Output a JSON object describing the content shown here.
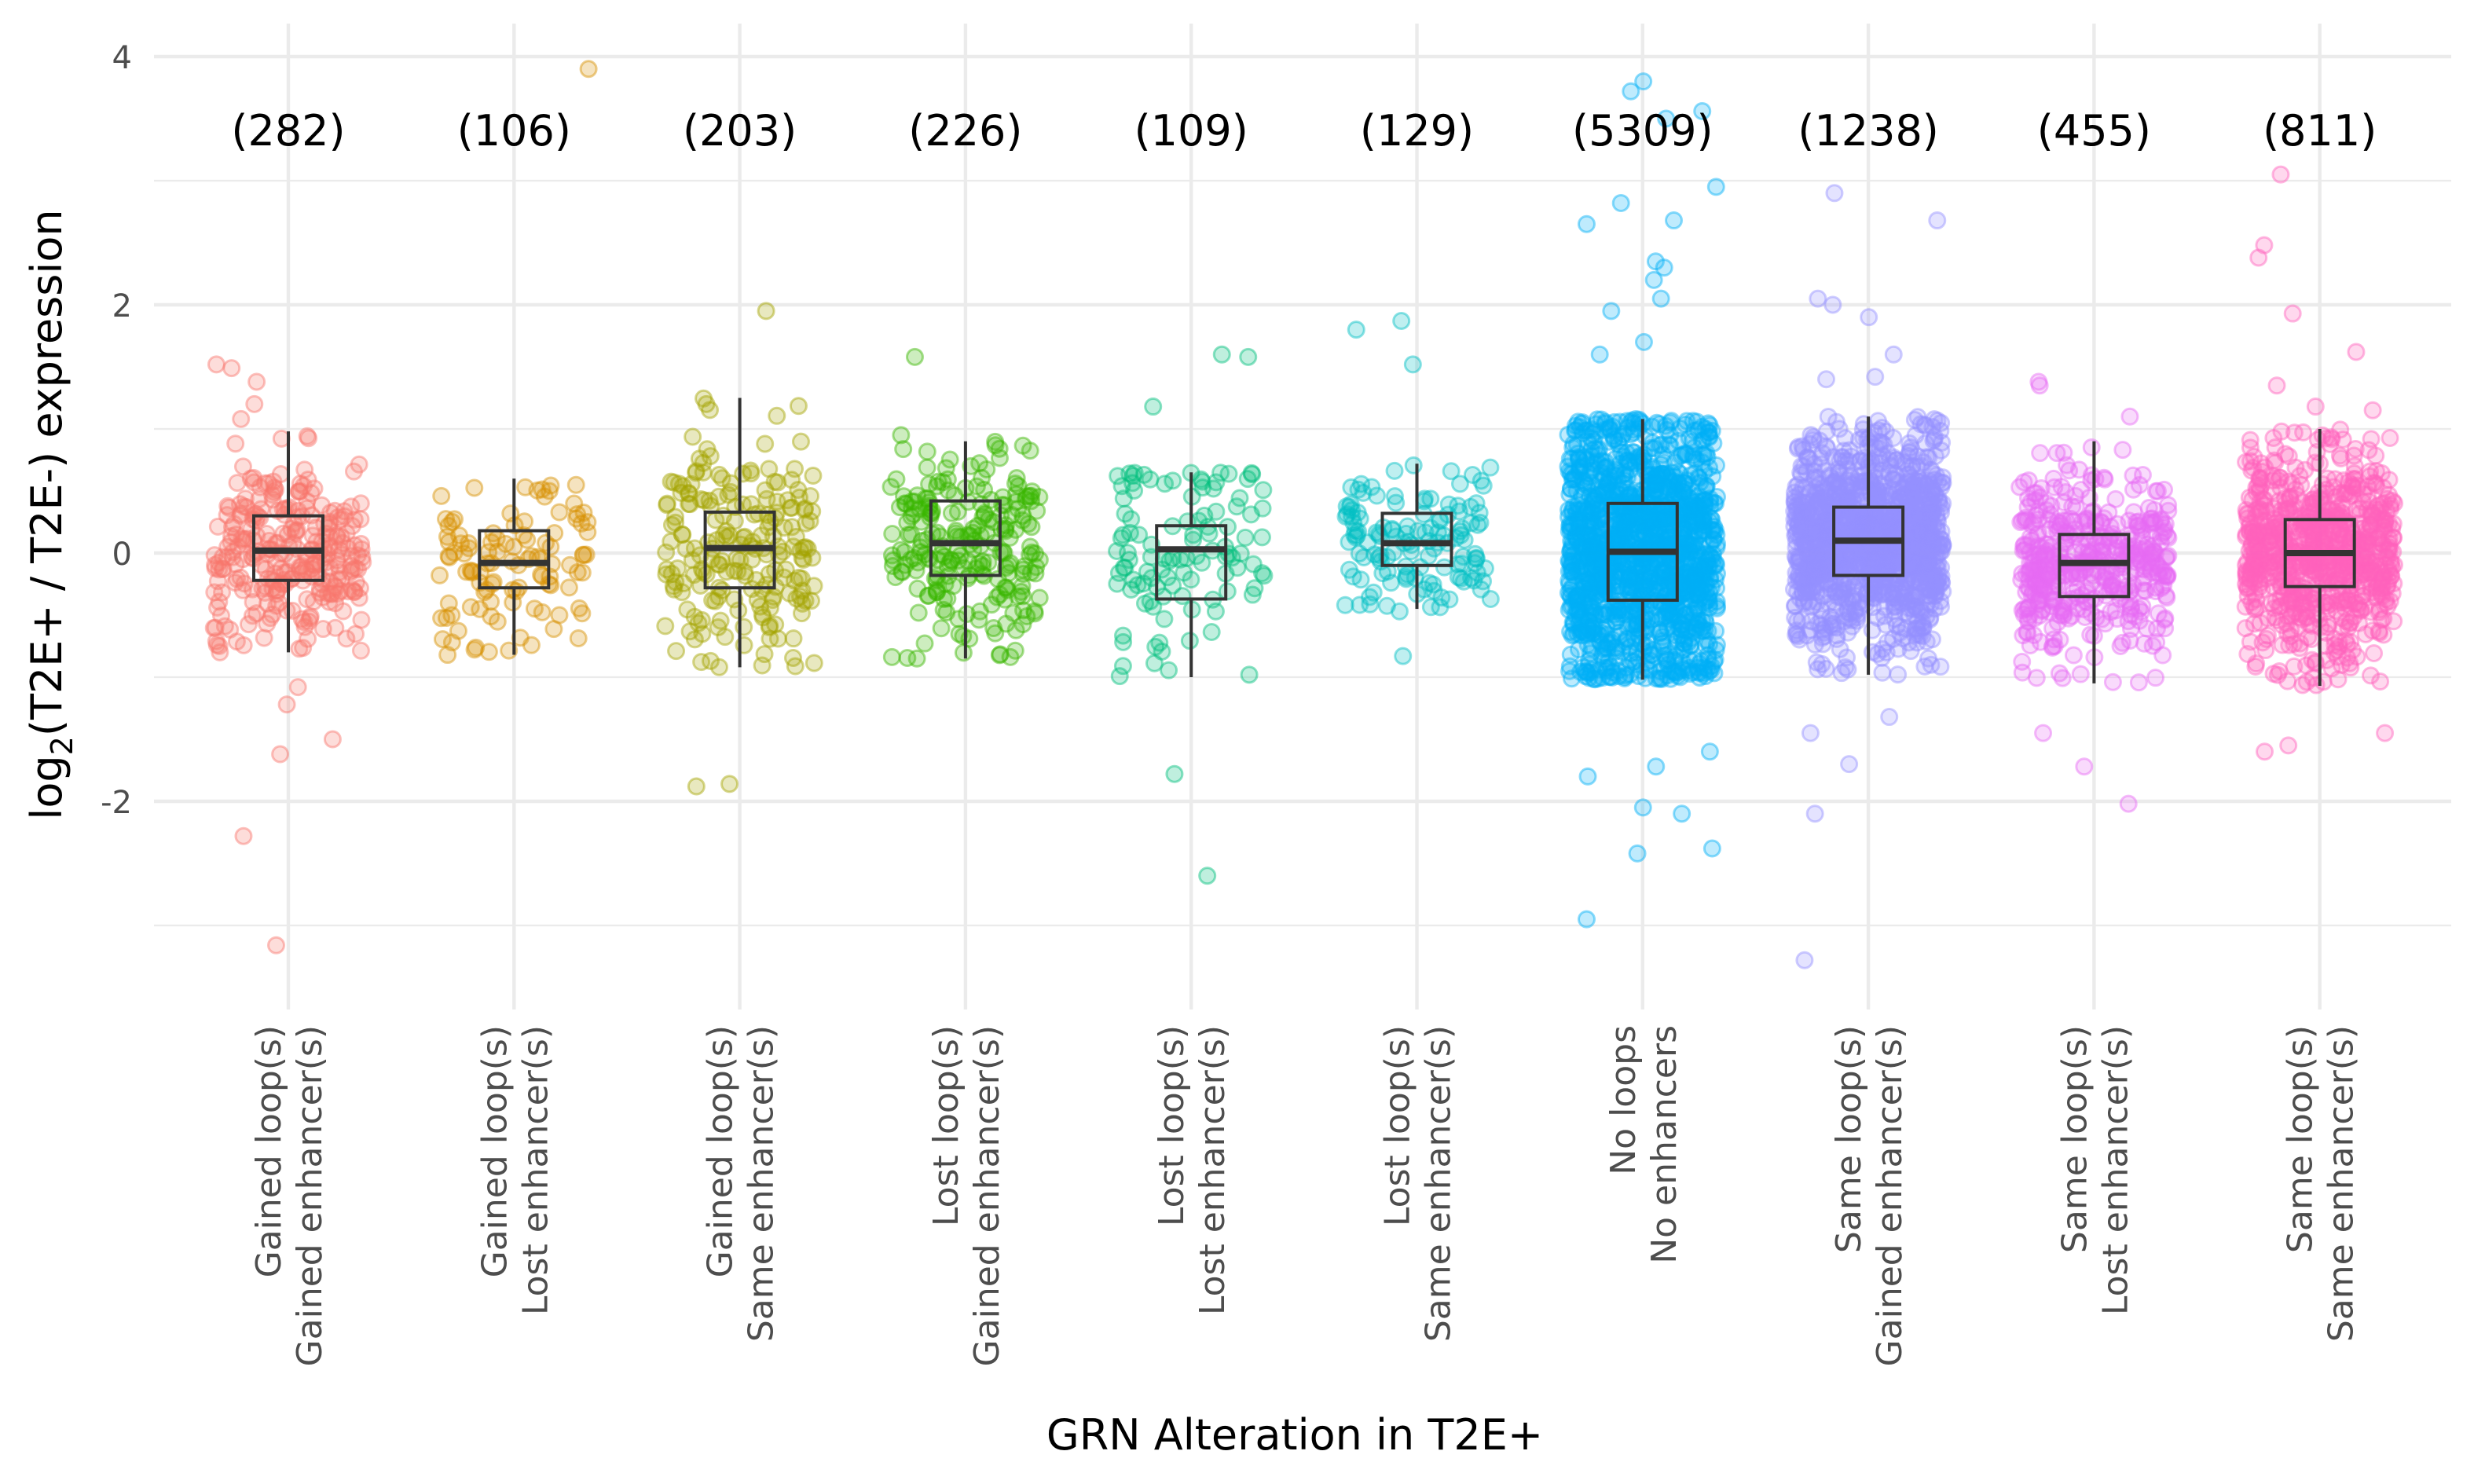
{
  "chart_data": {
    "type": "box",
    "xlabel": "GRN Alteration in T2E+",
    "ylabel_parts": [
      "log",
      "2",
      "(T2E+ / T2E-) expression"
    ],
    "ylim": [
      -3.7,
      4.25
    ],
    "yticks": [
      -2,
      0,
      2,
      4
    ],
    "ytick_labels": [
      "-2",
      "0",
      "2",
      "4"
    ],
    "grid": true,
    "legend": "none",
    "groups": [
      {
        "label_lines": [
          "Gained loop(s)",
          "Gained enhancer(s)"
        ],
        "count_label": "(282)",
        "n": 282,
        "color": "#F8766D",
        "box": {
          "q1": -0.22,
          "median": 0.02,
          "q3": 0.3,
          "whisker_low": -0.8,
          "whisker_high": 0.98
        },
        "outliers": [
          1.52,
          1.49,
          1.2,
          1.08,
          -1.22,
          -1.5,
          -1.62,
          -2.28,
          -3.16,
          -0.8,
          -1.08,
          1.38
        ]
      },
      {
        "label_lines": [
          "Gained loop(s)",
          "Lost enhancer(s)"
        ],
        "count_label": "(106)",
        "n": 106,
        "color": "#D89000",
        "box": {
          "q1": -0.28,
          "median": -0.08,
          "q3": 0.18,
          "whisker_low": -0.82,
          "whisker_high": 0.6
        },
        "outliers": [
          3.9,
          -0.72,
          -0.82
        ]
      },
      {
        "label_lines": [
          "Gained loop(s)",
          "Same enhancer(s)"
        ],
        "count_label": "(203)",
        "n": 203,
        "color": "#A3A500",
        "box": {
          "q1": -0.28,
          "median": 0.04,
          "q3": 0.33,
          "whisker_low": -0.92,
          "whisker_high": 1.25
        },
        "outliers": [
          1.95,
          -1.88,
          -1.86,
          1.2
        ]
      },
      {
        "label_lines": [
          "Lost loop(s)",
          "Gained enhancer(s)"
        ],
        "count_label": "(226)",
        "n": 226,
        "color": "#39B600",
        "box": {
          "q1": -0.18,
          "median": 0.08,
          "q3": 0.42,
          "whisker_low": -0.85,
          "whisker_high": 0.9
        },
        "outliers": [
          1.58,
          0.95,
          -0.85
        ]
      },
      {
        "label_lines": [
          "Lost loop(s)",
          "Lost enhancer(s)"
        ],
        "count_label": "(109)",
        "n": 109,
        "color": "#00BF7D",
        "box": {
          "q1": -0.37,
          "median": 0.03,
          "q3": 0.22,
          "whisker_low": -1.0,
          "whisker_high": 0.65
        },
        "outliers": [
          1.6,
          1.58,
          1.18,
          -1.78,
          -2.6,
          -0.98
        ]
      },
      {
        "label_lines": [
          "Lost loop(s)",
          "Same enhancer(s)"
        ],
        "count_label": "(129)",
        "n": 129,
        "color": "#00BFC4",
        "box": {
          "q1": -0.1,
          "median": 0.08,
          "q3": 0.32,
          "whisker_low": -0.45,
          "whisker_high": 0.72
        },
        "outliers": [
          1.87,
          1.8,
          1.52,
          0.63,
          -0.83,
          -0.47
        ]
      },
      {
        "label_lines": [
          "No loops",
          "No enhancers"
        ],
        "count_label": "(5309)",
        "n": 5309,
        "color": "#00B0F6",
        "box": {
          "q1": -0.38,
          "median": 0.01,
          "q3": 0.4,
          "whisker_low": -1.02,
          "whisker_high": 1.08
        },
        "outliers": [
          3.8,
          3.72,
          3.5,
          3.56,
          2.95,
          2.82,
          2.68,
          2.65,
          2.35,
          2.3,
          2.2,
          2.05,
          1.95,
          1.7,
          1.6,
          -1.6,
          -1.72,
          -1.8,
          -2.05,
          -2.1,
          -2.38,
          -2.42,
          -2.95
        ]
      },
      {
        "label_lines": [
          "Same loop(s)",
          "Gained enhancer(s)"
        ],
        "count_label": "(1238)",
        "n": 1238,
        "color": "#9590FF",
        "box": {
          "q1": -0.18,
          "median": 0.1,
          "q3": 0.37,
          "whisker_low": -0.98,
          "whisker_high": 1.1
        },
        "outliers": [
          2.9,
          2.68,
          2.05,
          2.0,
          1.9,
          1.6,
          1.42,
          1.4,
          -1.32,
          -1.45,
          -1.7,
          -2.1,
          -3.28
        ]
      },
      {
        "label_lines": [
          "Same loop(s)",
          "Lost enhancer(s)"
        ],
        "count_label": "(455)",
        "n": 455,
        "color": "#E76BF3",
        "box": {
          "q1": -0.35,
          "median": -0.08,
          "q3": 0.15,
          "whisker_low": -1.05,
          "whisker_high": 0.9
        },
        "outliers": [
          1.38,
          1.35,
          1.1,
          -1.72,
          -2.02,
          -1.45
        ]
      },
      {
        "label_lines": [
          "Same loop(s)",
          "Same enhancer(s)"
        ],
        "count_label": "(811)",
        "n": 811,
        "color": "#FF62BC",
        "box": {
          "q1": -0.27,
          "median": 0.0,
          "q3": 0.27,
          "whisker_low": -1.07,
          "whisker_high": 1.0
        },
        "outliers": [
          3.05,
          2.48,
          2.38,
          1.93,
          1.62,
          1.35,
          1.18,
          1.15,
          -1.55,
          -1.6,
          -1.45
        ]
      }
    ]
  }
}
